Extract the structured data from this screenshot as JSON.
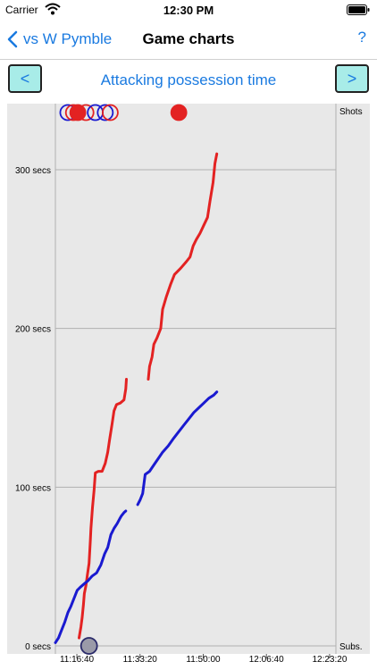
{
  "status_bar": {
    "carrier": "Carrier",
    "time": "12:30 PM"
  },
  "nav": {
    "back_label": "vs W Pymble",
    "title": "Game charts",
    "help_label": "?"
  },
  "chart_header": {
    "prev_label": "<",
    "next_label": ">",
    "title": "Attacking possession time"
  },
  "chart_data": {
    "type": "line",
    "title": "Attacking possession time",
    "x_tick_labels": [
      "11:16:40",
      "11:33:20",
      "11:50:00",
      "12:06:40",
      "12:23:20"
    ],
    "y_tick_labels": [
      "0 secs",
      "100 secs",
      "200 secs",
      "300 secs"
    ],
    "ylim": [
      0,
      320
    ],
    "xlim": [
      1000,
      1900
    ],
    "x_unit": "minutes after 11:00 (chart spans ~11:11 to 12:25)",
    "right_labels": {
      "top": "Shots",
      "bottom": "Subs."
    },
    "colors": {
      "red": "#e32222",
      "blue": "#1a1ad0",
      "grid": "#b0b0b0",
      "bg": "#e8e8e8"
    },
    "series": [
      {
        "color": "red",
        "segments": [
          [
            [
              1076,
              5
            ],
            [
              1082,
              12
            ],
            [
              1086,
              18
            ],
            [
              1090,
              26
            ],
            [
              1093,
              33
            ],
            [
              1098,
              38
            ],
            [
              1103,
              45
            ],
            [
              1108,
              52
            ],
            [
              1112,
              66
            ],
            [
              1114,
              74
            ],
            [
              1119,
              87
            ],
            [
              1124,
              98
            ],
            [
              1128,
              109
            ],
            [
              1138,
              110
            ],
            [
              1150,
              110
            ],
            [
              1160,
              115
            ],
            [
              1168,
              122
            ],
            [
              1174,
              130
            ],
            [
              1182,
              140
            ],
            [
              1188,
              148
            ],
            [
              1196,
              152
            ],
            [
              1208,
              153
            ],
            [
              1220,
              155
            ],
            [
              1226,
              162
            ],
            [
              1228,
              168
            ]
          ],
          [
            [
              1298,
              168
            ],
            [
              1302,
              176
            ],
            [
              1310,
              182
            ],
            [
              1316,
              190
            ],
            [
              1326,
              194
            ],
            [
              1338,
              200
            ],
            [
              1344,
              212
            ],
            [
              1356,
              220
            ],
            [
              1370,
              228
            ],
            [
              1382,
              234
            ],
            [
              1402,
              238
            ],
            [
              1420,
              242
            ],
            [
              1432,
              245
            ],
            [
              1442,
              252
            ],
            [
              1452,
              256
            ],
            [
              1464,
              260
            ],
            [
              1476,
              265
            ],
            [
              1488,
              270
            ],
            [
              1496,
              280
            ],
            [
              1506,
              292
            ],
            [
              1512,
              304
            ],
            [
              1518,
              310
            ]
          ]
        ]
      },
      {
        "color": "blue",
        "segments": [
          [
            [
              1000,
              2
            ],
            [
              1010,
              5
            ],
            [
              1020,
              10
            ],
            [
              1030,
              15
            ],
            [
              1040,
              21
            ],
            [
              1050,
              25
            ],
            [
              1060,
              30
            ],
            [
              1070,
              35
            ],
            [
              1080,
              37
            ],
            [
              1092,
              39
            ],
            [
              1104,
              41
            ],
            [
              1118,
              44
            ],
            [
              1132,
              46
            ],
            [
              1146,
              51
            ],
            [
              1158,
              58
            ],
            [
              1168,
              62
            ],
            [
              1178,
              70
            ],
            [
              1188,
              74
            ],
            [
              1198,
              77
            ],
            [
              1206,
              80
            ],
            [
              1212,
              82
            ],
            [
              1220,
              84
            ],
            [
              1226,
              85
            ]
          ],
          [
            [
              1264,
              89
            ],
            [
              1272,
              92
            ],
            [
              1280,
              96
            ],
            [
              1288,
              108
            ],
            [
              1302,
              110
            ],
            [
              1316,
              114
            ],
            [
              1330,
              118
            ],
            [
              1344,
              122
            ],
            [
              1362,
              126
            ],
            [
              1380,
              131
            ],
            [
              1396,
              135
            ],
            [
              1412,
              139
            ],
            [
              1428,
              143
            ],
            [
              1444,
              147
            ],
            [
              1460,
              150
            ],
            [
              1476,
              153
            ],
            [
              1492,
              156
            ],
            [
              1508,
              158
            ],
            [
              1518,
              160
            ]
          ]
        ]
      }
    ],
    "shots": [
      {
        "x": 1040,
        "team": "blue",
        "filled": false
      },
      {
        "x": 1058,
        "team": "red",
        "filled": false
      },
      {
        "x": 1072,
        "team": "red",
        "filled": true
      },
      {
        "x": 1098,
        "team": "red",
        "filled": false
      },
      {
        "x": 1128,
        "team": "blue",
        "filled": false
      },
      {
        "x": 1160,
        "team": "blue",
        "filled": false
      },
      {
        "x": 1176,
        "team": "red",
        "filled": false
      },
      {
        "x": 1396,
        "team": "red",
        "filled": true
      }
    ],
    "subs": [
      {
        "x": 1108
      }
    ]
  }
}
